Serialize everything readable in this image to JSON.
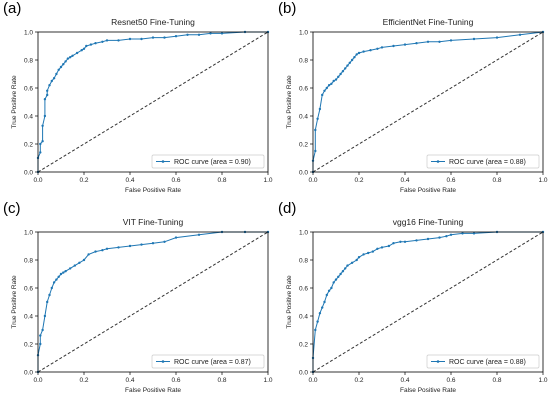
{
  "chart_data": [
    {
      "type": "line",
      "panel_letter": "(a)",
      "title": "Resnet50 Fine-Tuning",
      "xlabel": "False Positive Rate",
      "ylabel": "True Positive Rate",
      "xlim": [
        0,
        1
      ],
      "ylim": [
        0,
        1
      ],
      "xticks": [
        "0.0",
        "0.2",
        "0.4",
        "0.6",
        "0.8",
        "1.0"
      ],
      "yticks": [
        "0.0",
        "0.2",
        "0.4",
        "0.6",
        "0.8",
        "1.0"
      ],
      "legend_position": "lower-right",
      "reference_line": "dashed diagonal",
      "color": "#1f77b4",
      "series": [
        {
          "name": "ROC curve (area = 0.90)",
          "x": [
            0,
            0,
            0.01,
            0.01,
            0.02,
            0.02,
            0.03,
            0.03,
            0.04,
            0.04,
            0.05,
            0.06,
            0.07,
            0.08,
            0.09,
            0.1,
            0.11,
            0.12,
            0.13,
            0.14,
            0.15,
            0.17,
            0.19,
            0.2,
            0.21,
            0.23,
            0.25,
            0.28,
            0.3,
            0.35,
            0.4,
            0.45,
            0.5,
            0.55,
            0.6,
            0.65,
            0.7,
            0.75,
            0.8,
            0.9,
            1.0
          ],
          "y": [
            0,
            0.1,
            0.14,
            0.2,
            0.22,
            0.33,
            0.4,
            0.52,
            0.55,
            0.58,
            0.62,
            0.65,
            0.67,
            0.7,
            0.73,
            0.75,
            0.77,
            0.79,
            0.81,
            0.82,
            0.83,
            0.85,
            0.87,
            0.88,
            0.9,
            0.91,
            0.92,
            0.93,
            0.94,
            0.94,
            0.95,
            0.95,
            0.96,
            0.96,
            0.97,
            0.98,
            0.98,
            0.99,
            0.99,
            1.0,
            1.0
          ]
        }
      ]
    },
    {
      "type": "line",
      "panel_letter": "(b)",
      "title": "EfficientNet Fine-Tuning",
      "xlabel": "False Positive Rate",
      "ylabel": "True Positive Rate",
      "xlim": [
        0,
        1
      ],
      "ylim": [
        0,
        1
      ],
      "xticks": [
        "0.0",
        "0.2",
        "0.4",
        "0.6",
        "0.8",
        "1.0"
      ],
      "yticks": [
        "0.0",
        "0.2",
        "0.4",
        "0.6",
        "0.8",
        "1.0"
      ],
      "legend_position": "lower-right",
      "reference_line": "dashed diagonal",
      "color": "#1f77b4",
      "series": [
        {
          "name": "ROC curve (area = 0.88)",
          "x": [
            0,
            0,
            0.01,
            0.01,
            0.02,
            0.03,
            0.04,
            0.05,
            0.06,
            0.07,
            0.08,
            0.09,
            0.1,
            0.11,
            0.12,
            0.13,
            0.14,
            0.15,
            0.16,
            0.17,
            0.18,
            0.19,
            0.2,
            0.22,
            0.25,
            0.28,
            0.3,
            0.35,
            0.4,
            0.45,
            0.5,
            0.55,
            0.6,
            0.7,
            0.8,
            0.9,
            1.0
          ],
          "y": [
            0,
            0.08,
            0.15,
            0.3,
            0.38,
            0.45,
            0.55,
            0.58,
            0.6,
            0.62,
            0.63,
            0.65,
            0.66,
            0.68,
            0.7,
            0.72,
            0.74,
            0.76,
            0.78,
            0.8,
            0.82,
            0.84,
            0.85,
            0.86,
            0.87,
            0.88,
            0.89,
            0.9,
            0.91,
            0.92,
            0.93,
            0.93,
            0.94,
            0.95,
            0.96,
            0.98,
            1.0
          ]
        }
      ]
    },
    {
      "type": "line",
      "panel_letter": "(c)",
      "title": "VIT Fine-Tuning",
      "xlabel": "False Positive Rate",
      "ylabel": "True Positive Rate",
      "xlim": [
        0,
        1
      ],
      "ylim": [
        0,
        1
      ],
      "xticks": [
        "0.0",
        "0.2",
        "0.4",
        "0.6",
        "0.8",
        "1.0"
      ],
      "yticks": [
        "0.0",
        "0.2",
        "0.4",
        "0.6",
        "0.8",
        "1.0"
      ],
      "legend_position": "lower-right",
      "reference_line": "dashed diagonal",
      "color": "#1f77b4",
      "series": [
        {
          "name": "ROC curve (area = 0.87)",
          "x": [
            0,
            0,
            0.01,
            0.01,
            0.02,
            0.03,
            0.04,
            0.05,
            0.06,
            0.07,
            0.08,
            0.09,
            0.1,
            0.11,
            0.12,
            0.14,
            0.16,
            0.18,
            0.2,
            0.22,
            0.25,
            0.28,
            0.3,
            0.35,
            0.4,
            0.45,
            0.5,
            0.55,
            0.6,
            0.7,
            0.8,
            0.9,
            1.0
          ],
          "y": [
            0,
            0.12,
            0.2,
            0.26,
            0.3,
            0.4,
            0.5,
            0.55,
            0.6,
            0.64,
            0.66,
            0.68,
            0.7,
            0.71,
            0.72,
            0.74,
            0.76,
            0.78,
            0.8,
            0.84,
            0.86,
            0.87,
            0.88,
            0.89,
            0.9,
            0.91,
            0.92,
            0.93,
            0.96,
            0.98,
            1.0,
            1.0,
            1.0
          ]
        }
      ]
    },
    {
      "type": "line",
      "panel_letter": "(d)",
      "title": "vgg16 Fine-Tuning",
      "xlabel": "False Positive Rate",
      "ylabel": "True Positive Rate",
      "xlim": [
        0,
        1
      ],
      "ylim": [
        0,
        1
      ],
      "xticks": [
        "0.0",
        "0.2",
        "0.4",
        "0.6",
        "0.8",
        "1.0"
      ],
      "yticks": [
        "0.0",
        "0.2",
        "0.4",
        "0.6",
        "0.8",
        "1.0"
      ],
      "legend_position": "lower-right",
      "reference_line": "dashed diagonal",
      "color": "#1f77b4",
      "series": [
        {
          "name": "ROC curve (area = 0.88)",
          "x": [
            0,
            0,
            0.01,
            0.02,
            0.03,
            0.04,
            0.05,
            0.06,
            0.07,
            0.08,
            0.09,
            0.1,
            0.11,
            0.12,
            0.13,
            0.14,
            0.15,
            0.17,
            0.19,
            0.2,
            0.22,
            0.24,
            0.26,
            0.28,
            0.3,
            0.33,
            0.35,
            0.38,
            0.4,
            0.45,
            0.5,
            0.55,
            0.58,
            0.6,
            0.65,
            0.7,
            0.8,
            1.0
          ],
          "y": [
            0,
            0.1,
            0.3,
            0.36,
            0.42,
            0.46,
            0.5,
            0.55,
            0.58,
            0.6,
            0.64,
            0.66,
            0.68,
            0.7,
            0.72,
            0.74,
            0.76,
            0.78,
            0.8,
            0.82,
            0.84,
            0.85,
            0.86,
            0.88,
            0.89,
            0.9,
            0.92,
            0.93,
            0.93,
            0.94,
            0.95,
            0.96,
            0.97,
            0.98,
            0.99,
            0.99,
            1.0,
            1.0
          ]
        }
      ]
    }
  ]
}
